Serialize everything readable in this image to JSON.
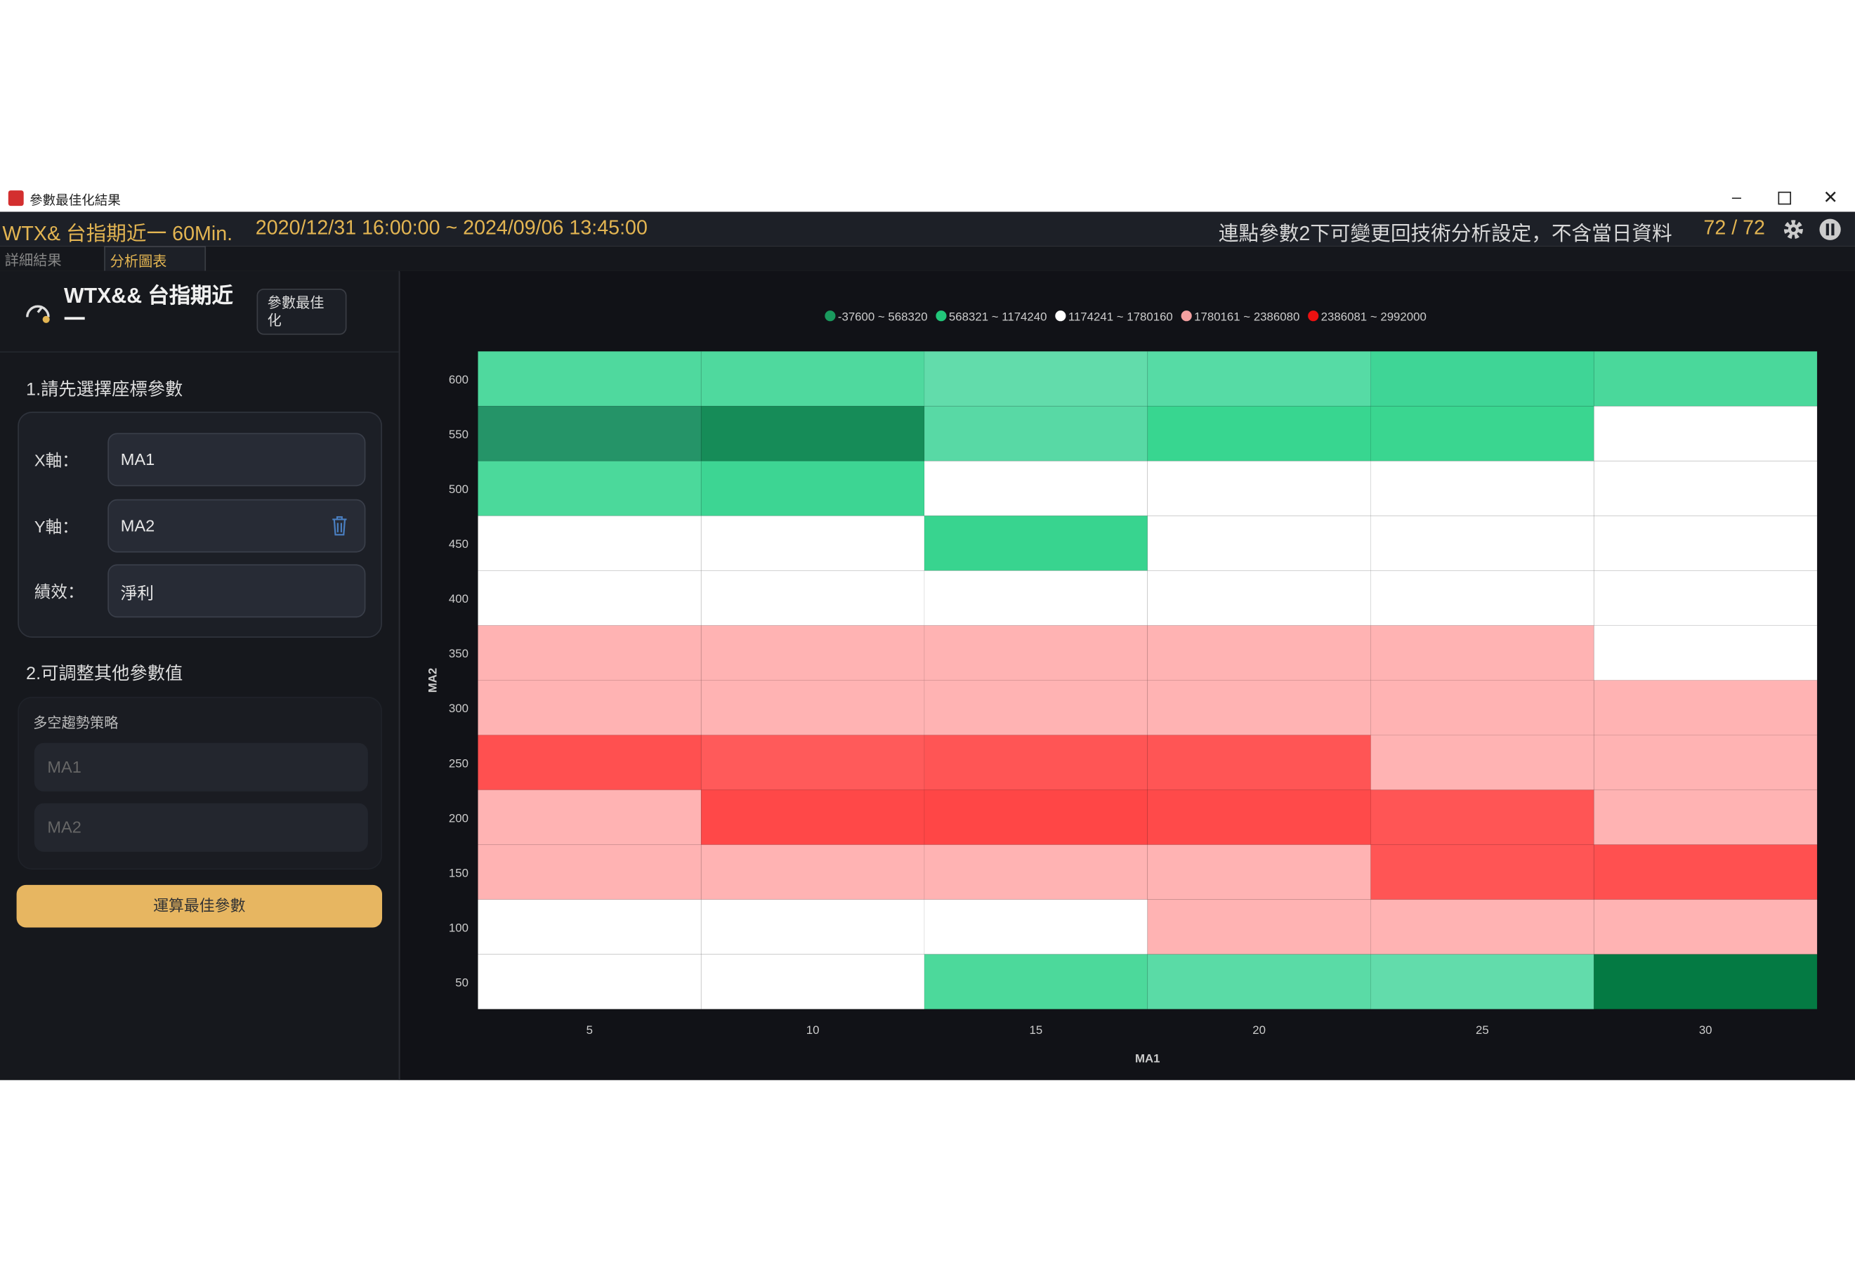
{
  "window": {
    "title": "參數最佳化結果"
  },
  "header": {
    "symbol": "WTX& 台指期近一 60Min.",
    "range": "2020/12/31 16:00:00 ~ 2024/09/06 13:45:00",
    "hint": "連點參數2下可變更回技術分析設定，不含當日資料",
    "count": "72 / 72"
  },
  "tabs": [
    "詳細結果",
    "分析圖表"
  ],
  "panel": {
    "title": "WTX&& 台指期近一",
    "button": "參數最佳化",
    "section1": "1.請先選擇座標參數",
    "fields": [
      {
        "label": "X軸：",
        "value": "MA1"
      },
      {
        "label": "Y軸：",
        "value": "MA2"
      },
      {
        "label": "績效：",
        "value": "淨利"
      }
    ],
    "section2": "2.可調整其他參數值",
    "strategy": "多空趨勢策略",
    "params": [
      "MA1",
      "MA2"
    ],
    "run": "運算最佳參數"
  },
  "chart_data": {
    "type": "heatmap",
    "x_label": "MA1",
    "y_label": "MA2",
    "x": [
      5,
      10,
      15,
      20,
      25,
      30
    ],
    "y": [
      600,
      550,
      500,
      450,
      400,
      350,
      300,
      250,
      200,
      150,
      100,
      50
    ],
    "legend": [
      {
        "label": "-37600 ~ 568320",
        "color": "#1a9a5e"
      },
      {
        "label": "568321 ~ 1174240",
        "color": "#22c77a"
      },
      {
        "label": "1174241 ~ 1780160",
        "color": "#ffffff"
      },
      {
        "label": "1780161 ~ 2386080",
        "color": "#f4a0a0"
      },
      {
        "label": "2386081 ~ 2992000",
        "color": "#ee1111"
      }
    ],
    "cell_colors": [
      [
        "#4fd99e",
        "#4fd99e",
        "#62dcab",
        "#56dba5",
        "#3fd596",
        "#4ad89b"
      ],
      [
        "#259468",
        "#168c58",
        "#58d9a5",
        "#38d690",
        "#3ad690",
        "#ffffff"
      ],
      [
        "#4bd99b",
        "#3dd593",
        "#ffffff",
        "#ffffff",
        "#ffffff",
        "#ffffff"
      ],
      [
        "#ffffff",
        "#ffffff",
        "#38d48f",
        "#ffffff",
        "#ffffff",
        "#ffffff"
      ],
      [
        "#ffffff",
        "#ffffff",
        "#ffffff",
        "#ffffff",
        "#ffffff",
        "#ffffff"
      ],
      [
        "#ffb3b3",
        "#ffb3b3",
        "#ffb3b3",
        "#ffb3b3",
        "#ffb3b3",
        "#ffffff"
      ],
      [
        "#ffb3b3",
        "#ffb3b3",
        "#ffb3b3",
        "#ffb3b3",
        "#ffb3b3",
        "#ffb3b3"
      ],
      [
        "#ff5050",
        "#ff5a5a",
        "#ff5555",
        "#ff5555",
        "#ffb3b3",
        "#ffb3b3"
      ],
      [
        "#ffb3b3",
        "#ff4848",
        "#ff4646",
        "#ff4a4a",
        "#ff5555",
        "#ffb3b3"
      ],
      [
        "#ffb3b3",
        "#ffb3b3",
        "#ffb3b3",
        "#ffb3b3",
        "#ff5555",
        "#ff5050"
      ],
      [
        "#ffffff",
        "#ffffff",
        "#ffffff",
        "#ffb3b3",
        "#ffb3b3",
        "#ffb3b3"
      ],
      [
        "#ffffff",
        "#ffffff",
        "#4cd99b",
        "#5adba6",
        "#62dcab",
        "#047a43"
      ]
    ]
  }
}
